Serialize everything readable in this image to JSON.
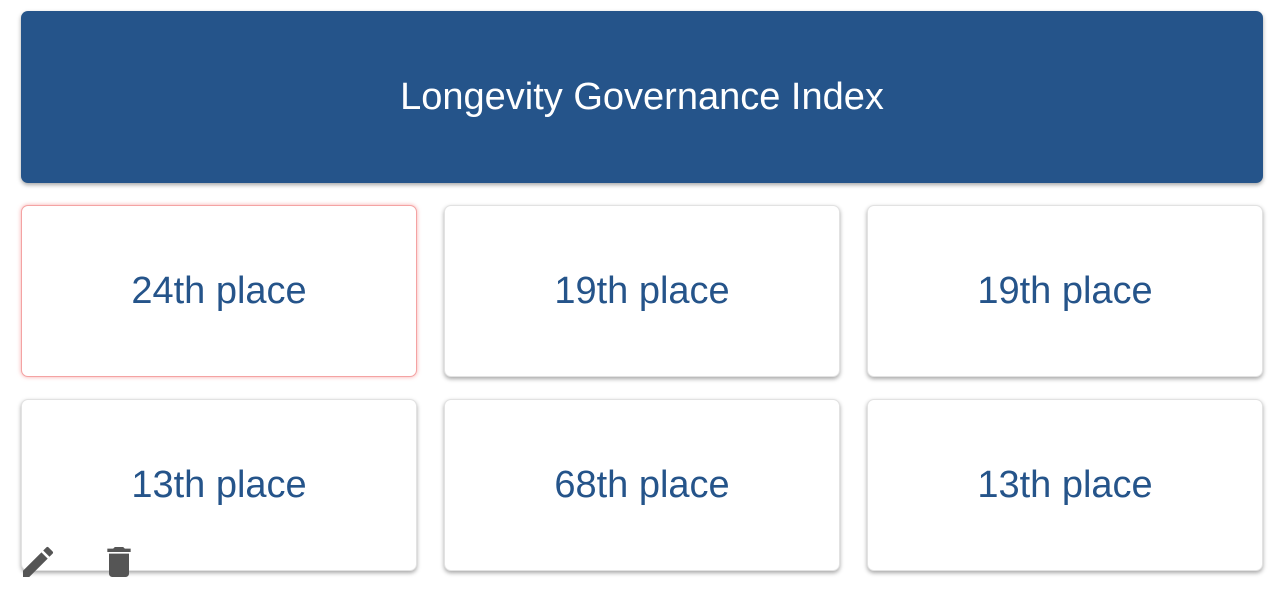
{
  "colors": {
    "header_bg": "#25548a",
    "card_text": "#25548a",
    "icon": "#555555"
  },
  "header": {
    "title": "Longevity Governance Index"
  },
  "cards": [
    {
      "label": "24th place"
    },
    {
      "label": "19th place"
    },
    {
      "label": "19th place"
    },
    {
      "label": "13th place"
    },
    {
      "label": "68th place"
    },
    {
      "label": "13th place"
    }
  ],
  "toolbar": {
    "edit_icon": "pencil-icon",
    "delete_icon": "trash-icon"
  }
}
